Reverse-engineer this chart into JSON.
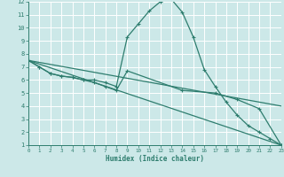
{
  "xlabel": "Humidex (Indice chaleur)",
  "xlim": [
    0,
    23
  ],
  "ylim": [
    1,
    12
  ],
  "yticks": [
    1,
    2,
    3,
    4,
    5,
    6,
    7,
    8,
    9,
    10,
    11,
    12
  ],
  "xticks": [
    0,
    1,
    2,
    3,
    4,
    5,
    6,
    7,
    8,
    9,
    10,
    11,
    12,
    13,
    14,
    15,
    16,
    17,
    18,
    19,
    20,
    21,
    22,
    23
  ],
  "bg_color": "#cce8e8",
  "grid_color": "#ffffff",
  "line_color": "#2e7d6e",
  "series": [
    {
      "x": [
        0,
        1,
        2,
        3,
        4,
        5,
        6,
        7,
        8,
        9,
        10,
        11,
        12,
        13,
        14,
        15,
        16,
        17,
        18,
        19,
        20,
        21,
        22,
        23
      ],
      "y": [
        7.5,
        7.0,
        6.5,
        6.3,
        6.2,
        6.0,
        6.0,
        5.8,
        5.5,
        9.3,
        10.3,
        11.3,
        12.0,
        12.2,
        11.2,
        9.3,
        6.8,
        5.5,
        4.3,
        3.3,
        2.5,
        2.0,
        1.5,
        1.0
      ]
    },
    {
      "x": [
        0,
        1,
        2,
        3,
        4,
        5,
        6,
        7,
        8,
        9,
        14,
        17,
        19,
        21,
        23
      ],
      "y": [
        7.5,
        7.0,
        6.5,
        6.3,
        6.2,
        6.0,
        5.8,
        5.5,
        5.2,
        6.7,
        5.2,
        5.0,
        4.5,
        3.8,
        1.0
      ]
    },
    {
      "x": [
        0,
        23
      ],
      "y": [
        7.5,
        1.0
      ]
    },
    {
      "x": [
        0,
        23
      ],
      "y": [
        7.5,
        4.0
      ]
    }
  ]
}
